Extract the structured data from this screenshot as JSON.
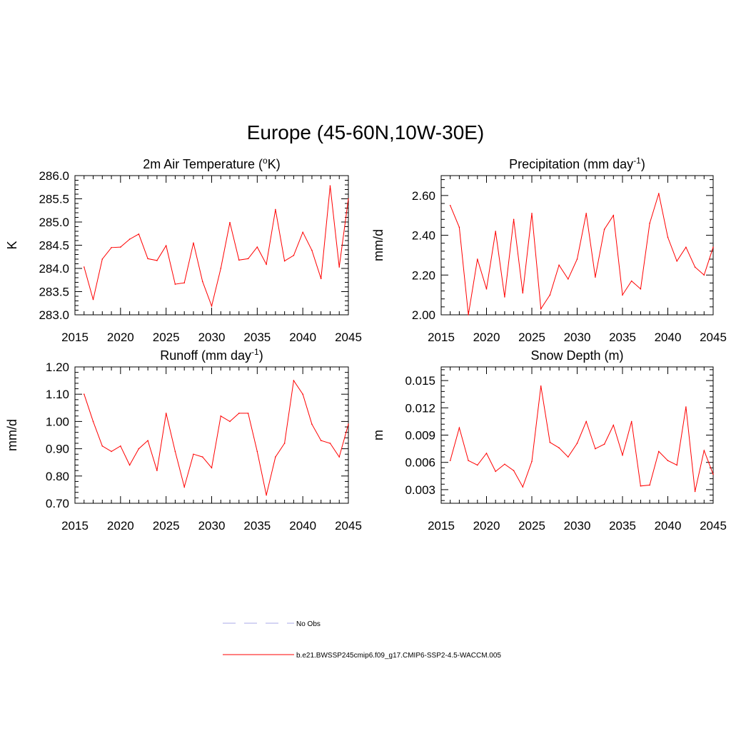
{
  "page_title": "Europe (45-60N,10W-30E)",
  "colors": {
    "series": "#ff0000",
    "obs": "#a8a8e8",
    "axis": "#000000"
  },
  "legend": {
    "entries": [
      {
        "label": "No Obs",
        "style": "dashed",
        "color": "#a8a8e8"
      },
      {
        "label": "b.e21.BWSSP245cmip6.f09_g17.CMIP6-SSP2-4.5-WACCM.005",
        "style": "solid",
        "color": "#ff0000"
      }
    ]
  },
  "chart_data": [
    {
      "type": "line",
      "title": "2m Air Temperature (",
      "title_sup": "o",
      "title_suffix": "K)",
      "ylabel": "K",
      "xlim": [
        2015,
        2045
      ],
      "ylim": [
        283.0,
        286.0
      ],
      "xticks": [
        2015,
        2020,
        2025,
        2030,
        2035,
        2040,
        2045
      ],
      "xtick_labels": [
        "2015",
        "2020",
        "2025",
        "2030",
        "2035",
        "2040",
        "2045"
      ],
      "yticks": [
        283.0,
        283.5,
        284.0,
        284.5,
        285.0,
        285.5,
        286.0
      ],
      "ytick_labels": [
        "283.0",
        "283.5",
        "284.0",
        "284.5",
        "285.0",
        "285.5",
        "286.0"
      ],
      "series": [
        {
          "name": "b.e21.BWSSP245cmip6.f09_g17.CMIP6-SSP2-4.5-WACCM.005",
          "x": [
            2016,
            2017,
            2018,
            2019,
            2020,
            2021,
            2022,
            2023,
            2024,
            2025,
            2026,
            2027,
            2028,
            2029,
            2030,
            2031,
            2032,
            2033,
            2034,
            2035,
            2036,
            2037,
            2038,
            2039,
            2040,
            2041,
            2042,
            2043,
            2044,
            2045
          ],
          "values": [
            284.03,
            283.33,
            284.2,
            284.45,
            284.46,
            284.63,
            284.74,
            284.21,
            284.17,
            284.49,
            283.66,
            283.69,
            284.55,
            283.72,
            283.19,
            284.0,
            284.99,
            284.18,
            284.21,
            284.46,
            284.09,
            285.27,
            284.16,
            284.28,
            284.78,
            284.39,
            283.78,
            285.78,
            284.03,
            285.5
          ]
        }
      ]
    },
    {
      "type": "line",
      "title": "Precipitation (mm day",
      "title_sup": "-1",
      "title_suffix": ")",
      "ylabel": "mm/d",
      "xlim": [
        2015,
        2045
      ],
      "ylim": [
        2.0,
        2.7
      ],
      "xticks": [
        2015,
        2020,
        2025,
        2030,
        2035,
        2040,
        2045
      ],
      "xtick_labels": [
        "2015",
        "2020",
        "2025",
        "2030",
        "2035",
        "2040",
        "2045"
      ],
      "yticks": [
        2.0,
        2.2,
        2.4,
        2.6
      ],
      "ytick_labels": [
        "2.00",
        "2.20",
        "2.40",
        "2.60"
      ],
      "series": [
        {
          "name": "b.e21.BWSSP245cmip6.f09_g17.CMIP6-SSP2-4.5-WACCM.005",
          "x": [
            2016,
            2017,
            2018,
            2019,
            2020,
            2021,
            2022,
            2023,
            2024,
            2025,
            2026,
            2027,
            2028,
            2029,
            2030,
            2031,
            2032,
            2033,
            2034,
            2035,
            2036,
            2037,
            2038,
            2039,
            2040,
            2041,
            2042,
            2043,
            2044,
            2045
          ],
          "values": [
            2.55,
            2.44,
            2.0,
            2.28,
            2.13,
            2.42,
            2.09,
            2.48,
            2.11,
            2.51,
            2.03,
            2.1,
            2.25,
            2.18,
            2.28,
            2.51,
            2.19,
            2.43,
            2.5,
            2.1,
            2.17,
            2.13,
            2.46,
            2.61,
            2.39,
            2.27,
            2.34,
            2.24,
            2.2,
            2.34
          ]
        }
      ]
    },
    {
      "type": "line",
      "title": "Runoff (mm day",
      "title_sup": "-1",
      "title_suffix": ")",
      "ylabel": "mm/d",
      "xlim": [
        2015,
        2045
      ],
      "ylim": [
        0.7,
        1.2
      ],
      "xticks": [
        2015,
        2020,
        2025,
        2030,
        2035,
        2040,
        2045
      ],
      "xtick_labels": [
        "2015",
        "2020",
        "2025",
        "2030",
        "2035",
        "2040",
        "2045"
      ],
      "yticks": [
        0.7,
        0.8,
        0.9,
        1.0,
        1.1,
        1.2
      ],
      "ytick_labels": [
        "0.70",
        "0.80",
        "0.90",
        "1.00",
        "1.10",
        "1.20"
      ],
      "series": [
        {
          "name": "b.e21.BWSSP245cmip6.f09_g17.CMIP6-SSP2-4.5-WACCM.005",
          "x": [
            2016,
            2017,
            2018,
            2019,
            2020,
            2021,
            2022,
            2023,
            2024,
            2025,
            2026,
            2027,
            2028,
            2029,
            2030,
            2031,
            2032,
            2033,
            2034,
            2035,
            2036,
            2037,
            2038,
            2039,
            2040,
            2041,
            2042,
            2043,
            2044,
            2045
          ],
          "values": [
            1.1,
            1.0,
            0.91,
            0.89,
            0.91,
            0.84,
            0.9,
            0.93,
            0.82,
            1.03,
            0.89,
            0.76,
            0.88,
            0.87,
            0.83,
            1.02,
            1.0,
            1.03,
            1.03,
            0.89,
            0.73,
            0.87,
            0.92,
            1.15,
            1.1,
            0.99,
            0.93,
            0.92,
            0.87,
            0.99
          ]
        }
      ]
    },
    {
      "type": "line",
      "title": "Snow Depth (m)",
      "title_sup": "",
      "title_suffix": "",
      "ylabel": "m",
      "xlim": [
        2015,
        2045
      ],
      "ylim": [
        0.0015,
        0.0165
      ],
      "xticks": [
        2015,
        2020,
        2025,
        2030,
        2035,
        2040,
        2045
      ],
      "xtick_labels": [
        "2015",
        "2020",
        "2025",
        "2030",
        "2035",
        "2040",
        "2045"
      ],
      "yticks": [
        0.003,
        0.006,
        0.009,
        0.012,
        0.015
      ],
      "ytick_labels": [
        "0.003",
        "0.006",
        "0.009",
        "0.012",
        "0.015"
      ],
      "series": [
        {
          "name": "b.e21.BWSSP245cmip6.f09_g17.CMIP6-SSP2-4.5-WACCM.005",
          "x": [
            2016,
            2017,
            2018,
            2019,
            2020,
            2021,
            2022,
            2023,
            2024,
            2025,
            2026,
            2027,
            2028,
            2029,
            2030,
            2031,
            2032,
            2033,
            2034,
            2035,
            2036,
            2037,
            2038,
            2039,
            2040,
            2041,
            2042,
            2043,
            2044,
            2045
          ],
          "values": [
            0.0062,
            0.0098,
            0.0062,
            0.0057,
            0.007,
            0.005,
            0.0058,
            0.0051,
            0.0033,
            0.0061,
            0.0144,
            0.0082,
            0.0076,
            0.0066,
            0.0081,
            0.0105,
            0.0075,
            0.008,
            0.0101,
            0.0068,
            0.0105,
            0.0034,
            0.0035,
            0.0072,
            0.0062,
            0.0057,
            0.0121,
            0.0028,
            0.0073,
            0.0047
          ]
        }
      ]
    }
  ]
}
